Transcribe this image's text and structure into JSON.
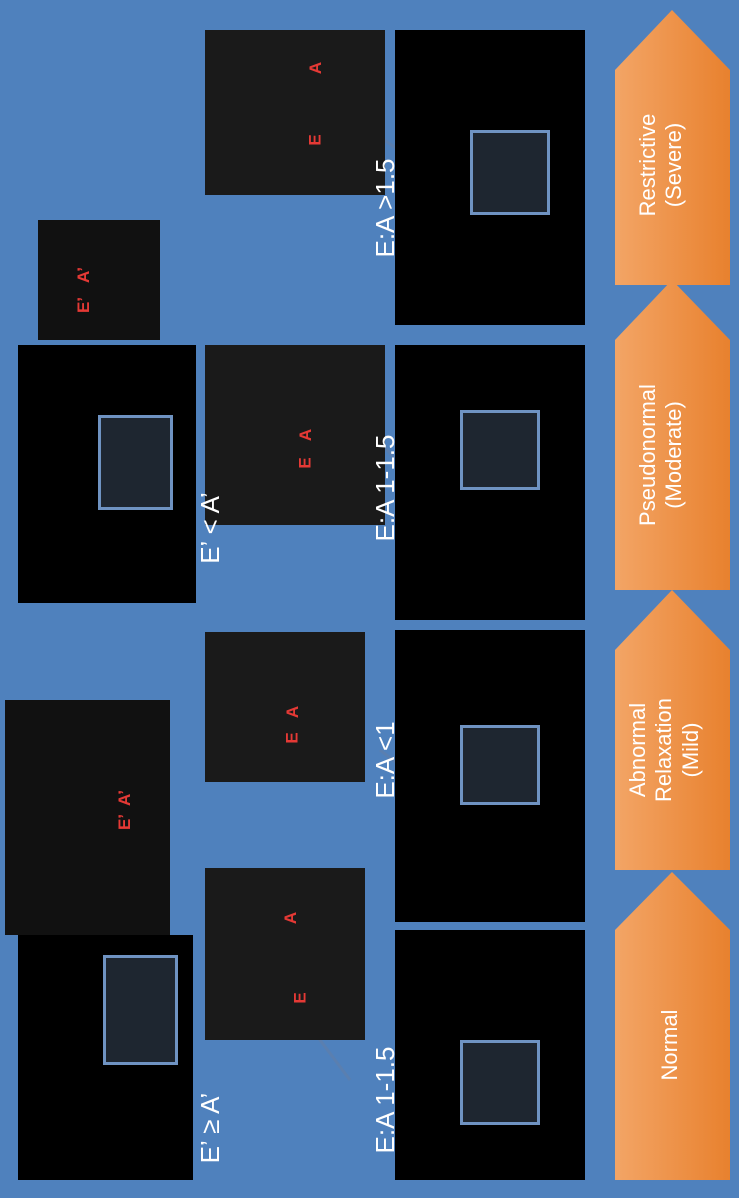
{
  "grades": [
    {
      "label": "Normal"
    },
    {
      "label": "Abnormal Relaxation (Mild)",
      "lines": [
        "Abnormal",
        "Relaxation",
        "(Mild)"
      ]
    },
    {
      "label": "Pseudonormal (Moderate)",
      "lines": [
        "Pseudonormal",
        "(Moderate)"
      ]
    },
    {
      "label": "Restrictive (Severe)",
      "lines": [
        "Restrictive",
        "(Severe)"
      ]
    }
  ],
  "ea_ratios": [
    "E:A 1-1.5",
    "E:A <1",
    "E:A 1-1.5",
    "E:A >1.5"
  ],
  "tissue_doppler": [
    "E’ ≥ A’",
    "E’ < A’"
  ],
  "wave_labels": {
    "e": "E",
    "a": "A",
    "e_prime": "E’",
    "a_prime": "A’"
  },
  "colors": {
    "background": "#4f81bd",
    "chevron": "#f79646",
    "arrow": "#5a7fb0",
    "wave_label": "#e53935"
  }
}
